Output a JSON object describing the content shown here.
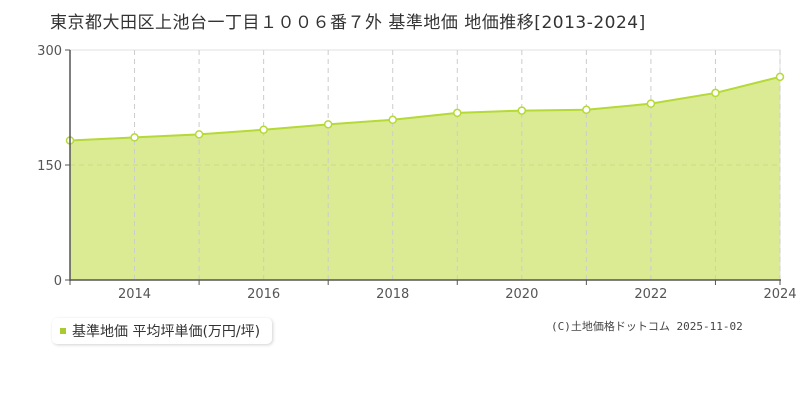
{
  "title": "東京都大田区上池台一丁目１００６番７外 基準地価 地価推移[2013-2024]",
  "legend": {
    "label": "基準地価 平均坪単価(万円/坪)",
    "color": "#a8cc2f"
  },
  "copyright": "(C)土地価格ドットコム 2025-11-02",
  "colors": {
    "area_fill": "#dbeb94",
    "line": "#b5d936",
    "marker_fill": "#ffffff",
    "grid": "#cccccc",
    "axis": "#555555"
  },
  "chart_data": {
    "type": "area",
    "title": "東京都大田区上池台一丁目１００６番７外 基準地価 地価推移[2013-2024]",
    "xlabel": "",
    "ylabel": "",
    "x": [
      2013,
      2014,
      2015,
      2016,
      2017,
      2018,
      2019,
      2020,
      2021,
      2022,
      2023,
      2024
    ],
    "series": [
      {
        "name": "基準地価 平均坪単価(万円/坪)",
        "values": [
          182,
          186,
          190,
          196,
          203,
          209,
          218,
          221,
          222,
          230,
          244,
          265
        ]
      }
    ],
    "x_tick_labels": [
      "2014",
      "2016",
      "2018",
      "2020",
      "2022",
      "2024"
    ],
    "y_tick_labels": [
      "0",
      "150",
      "300"
    ],
    "ylim": [
      0,
      300
    ],
    "xlim": [
      2013,
      2024
    ],
    "grid": true,
    "legend_position": "bottom-left"
  }
}
